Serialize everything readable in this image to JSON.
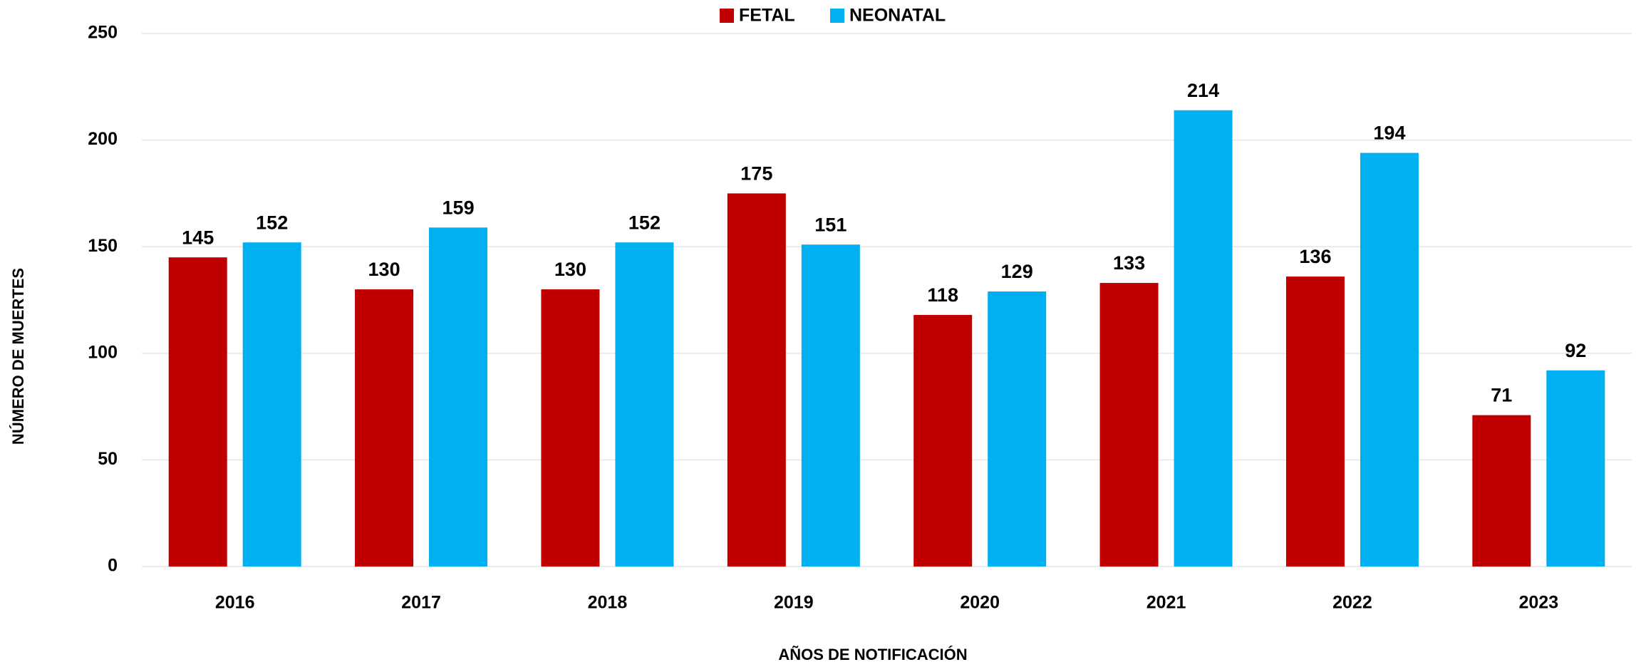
{
  "chart_data": {
    "type": "bar",
    "x_label": "AÑOS DE NOTIFICACIÓN",
    "y_label": "NÚMERO DE MUERTES",
    "categories": [
      "2016",
      "2017",
      "2018",
      "2019",
      "2020",
      "2021",
      "2022",
      "2023"
    ],
    "series": [
      {
        "name": "FETAL",
        "color": "#c00000",
        "values": [
          145,
          130,
          130,
          175,
          118,
          133,
          136,
          71
        ]
      },
      {
        "name": "NEONATAL",
        "color": "#00b0f0",
        "values": [
          152,
          159,
          152,
          151,
          129,
          214,
          194,
          92
        ]
      }
    ],
    "ylim": [
      0,
      250
    ],
    "yticks": [
      0,
      50,
      100,
      150,
      200,
      250
    ],
    "grid": true,
    "legend": "top"
  }
}
